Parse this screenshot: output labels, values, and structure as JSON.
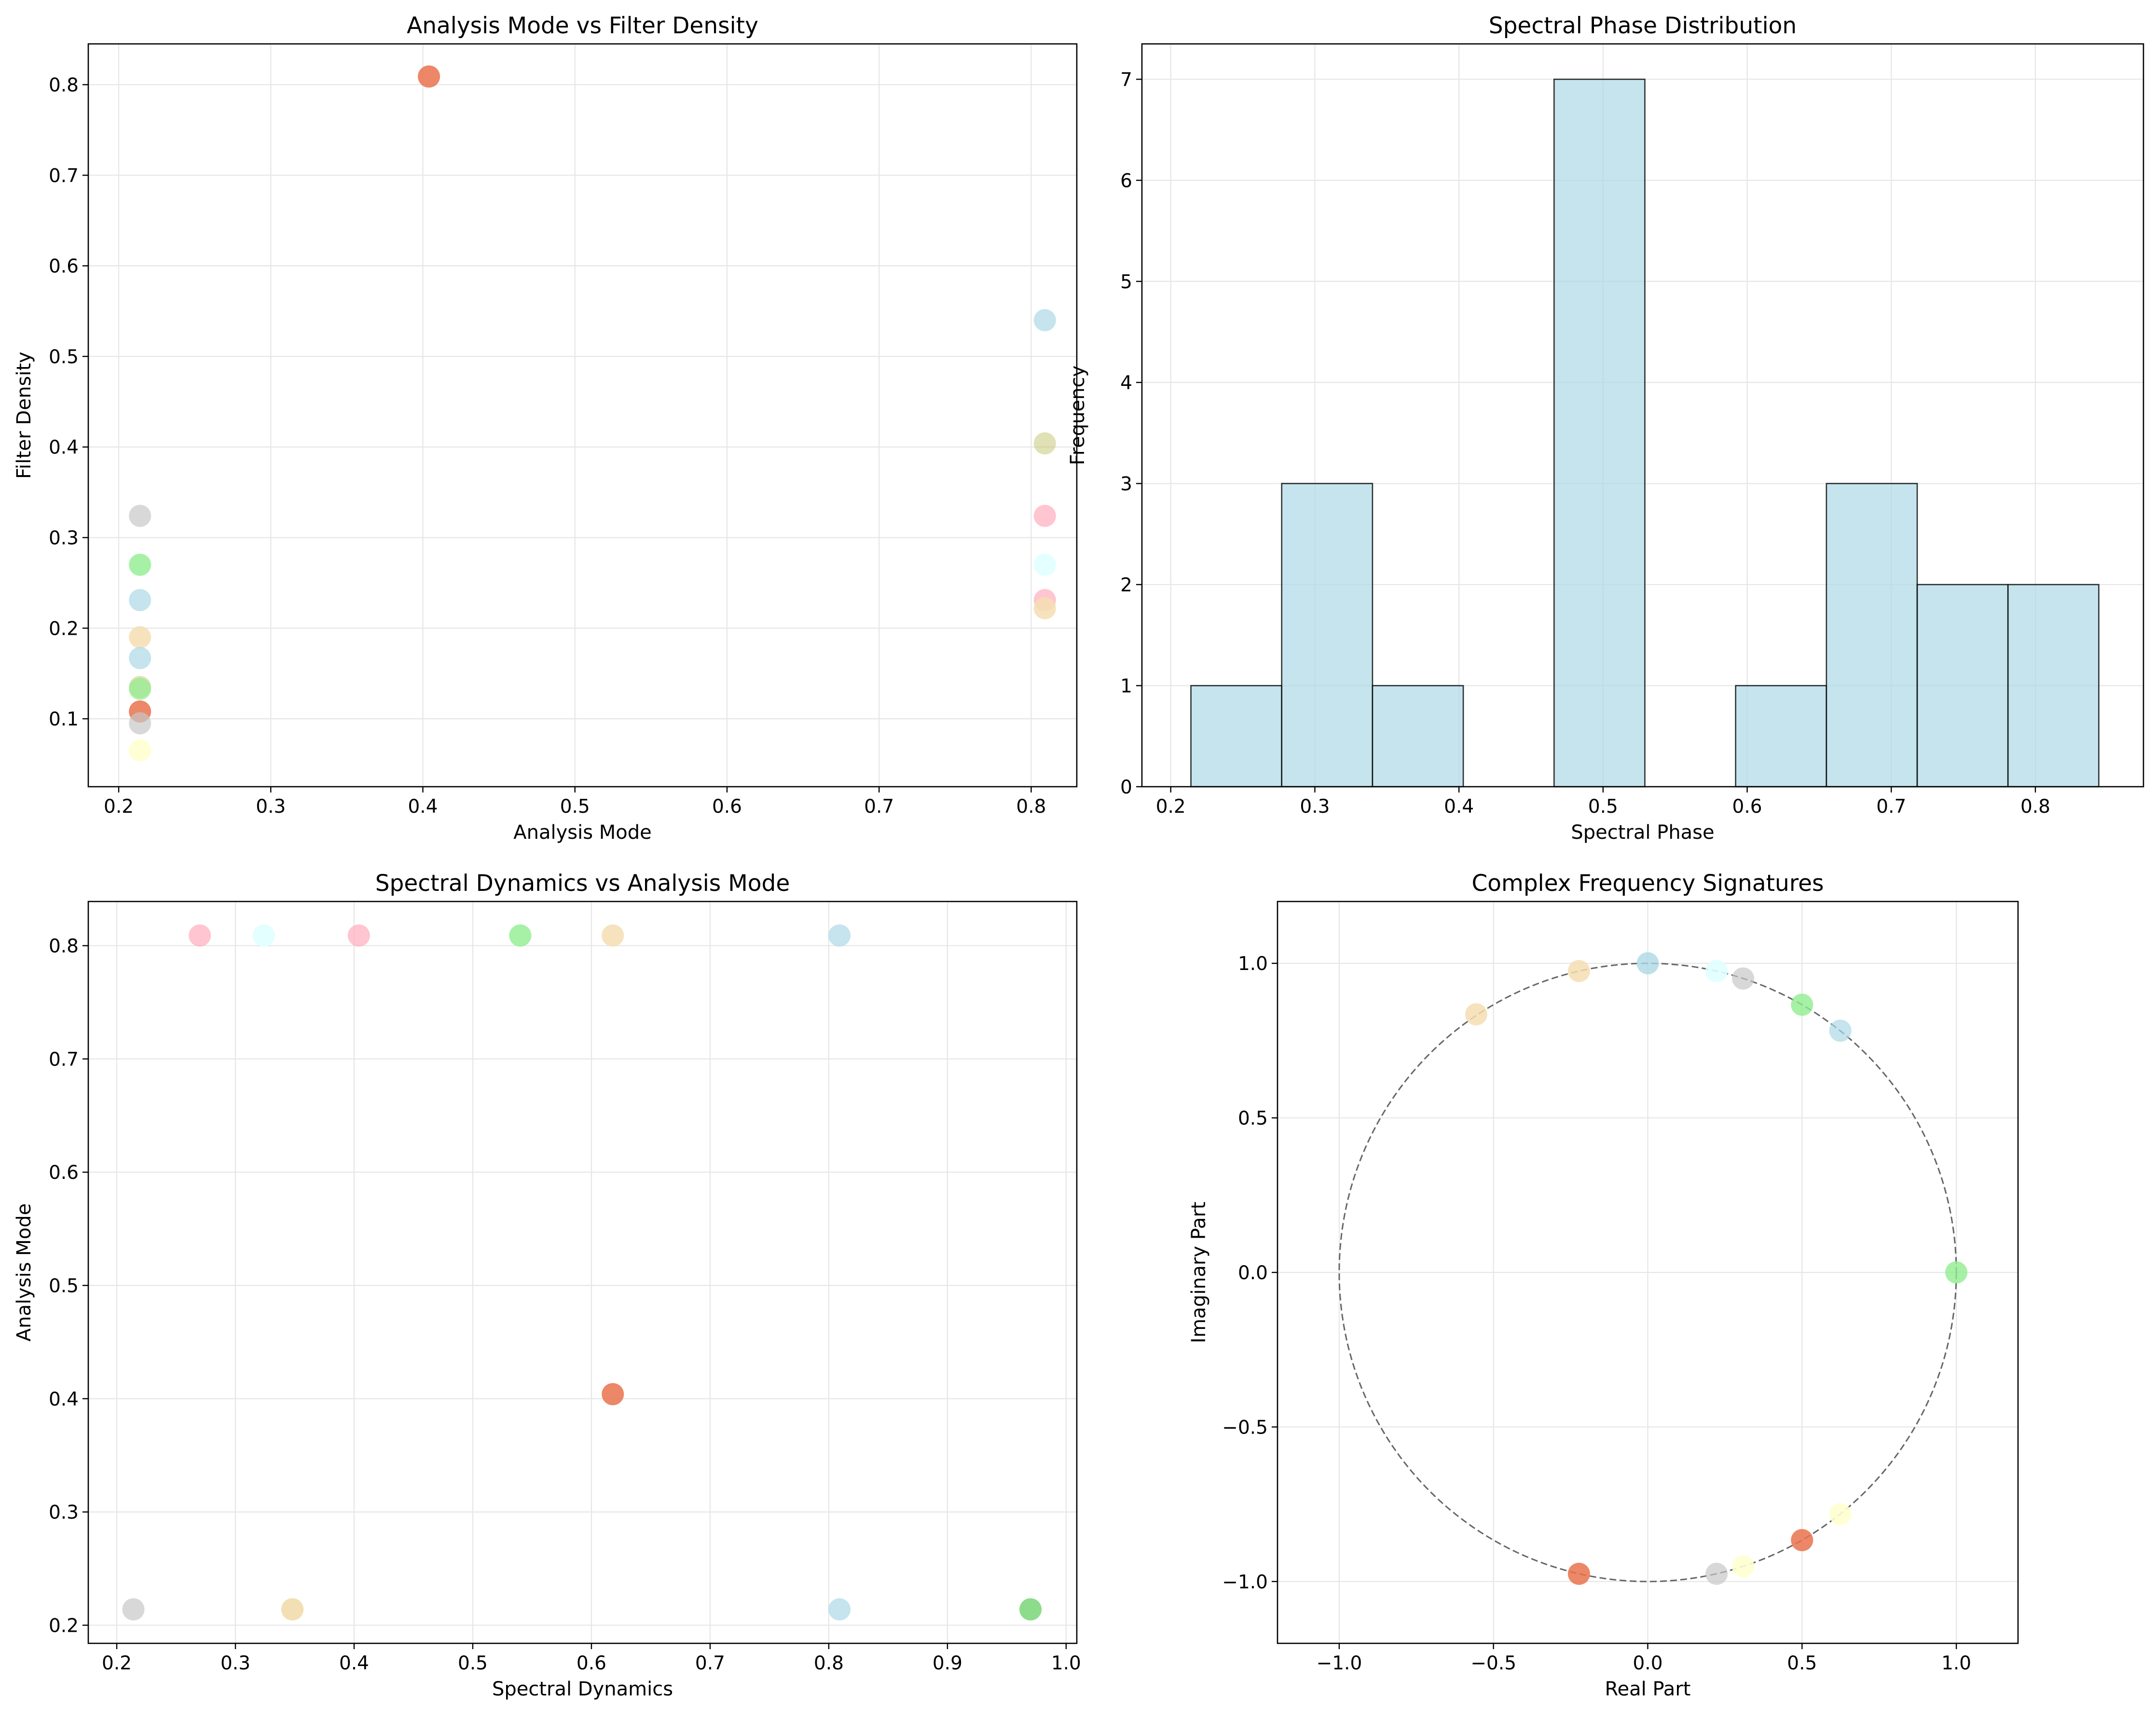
{
  "chart_data": [
    {
      "type": "scatter",
      "title": "Analysis Mode vs Filter Density",
      "xlabel": "Analysis Mode",
      "ylabel": "Filter Density",
      "xlim": [
        0.18,
        0.83
      ],
      "ylim": [
        0.025,
        0.845
      ],
      "xticks": [
        0.2,
        0.3,
        0.4,
        0.5,
        0.6,
        0.7,
        0.8
      ],
      "yticks": [
        0.1,
        0.2,
        0.3,
        0.4,
        0.5,
        0.6,
        0.7,
        0.8
      ],
      "grid": true,
      "points": [
        {
          "x": 0.404,
          "y": 0.809,
          "color": "#e9724c",
          "alpha": 0.85
        },
        {
          "x": 0.809,
          "y": 0.54,
          "color": "#add8e6",
          "alpha": 0.7
        },
        {
          "x": 0.809,
          "y": 0.404,
          "color": "#c8c87a",
          "alpha": 0.55
        },
        {
          "x": 0.809,
          "y": 0.324,
          "color": "#ffa6b8",
          "alpha": 0.65
        },
        {
          "x": 0.809,
          "y": 0.27,
          "color": "#e0ffff",
          "alpha": 0.9
        },
        {
          "x": 0.809,
          "y": 0.231,
          "color": "#ffa6b8",
          "alpha": 0.65
        },
        {
          "x": 0.809,
          "y": 0.222,
          "color": "#f5deb3",
          "alpha": 0.85
        },
        {
          "x": 0.214,
          "y": 0.324,
          "color": "#c8c8c8",
          "alpha": 0.7
        },
        {
          "x": 0.214,
          "y": 0.27,
          "color": "#90ee90",
          "alpha": 0.8
        },
        {
          "x": 0.214,
          "y": 0.231,
          "color": "#add8e6",
          "alpha": 0.7
        },
        {
          "x": 0.214,
          "y": 0.19,
          "color": "#f5deb3",
          "alpha": 0.85
        },
        {
          "x": 0.214,
          "y": 0.167,
          "color": "#add8e6",
          "alpha": 0.7
        },
        {
          "x": 0.214,
          "y": 0.135,
          "color": "#c8c87a",
          "alpha": 0.55
        },
        {
          "x": 0.214,
          "y": 0.133,
          "color": "#90ee90",
          "alpha": 0.7
        },
        {
          "x": 0.214,
          "y": 0.108,
          "color": "#e9724c",
          "alpha": 0.85
        },
        {
          "x": 0.214,
          "y": 0.095,
          "color": "#c8c8c8",
          "alpha": 0.7
        },
        {
          "x": 0.214,
          "y": 0.065,
          "color": "#ffffd0",
          "alpha": 0.9
        }
      ]
    },
    {
      "type": "bar",
      "title": "Spectral Phase Distribution",
      "xlabel": "Spectral Phase",
      "ylabel": "Frequency",
      "xlim": [
        0.18,
        0.875
      ],
      "ylim": [
        0,
        7.35
      ],
      "xticks": [
        0.2,
        0.3,
        0.4,
        0.5,
        0.6,
        0.7,
        0.8
      ],
      "yticks": [
        0,
        1,
        2,
        3,
        4,
        5,
        6,
        7
      ],
      "grid": true,
      "bin_edges": [
        0.214,
        0.277,
        0.34,
        0.403,
        0.466,
        0.529,
        0.592,
        0.655,
        0.718,
        0.781,
        0.844
      ],
      "values": [
        1,
        3,
        1,
        0,
        7,
        0,
        1,
        3,
        2,
        2
      ],
      "color": "#add8e6"
    },
    {
      "type": "scatter",
      "title": "Spectral Dynamics vs Analysis Mode",
      "xlabel": "Spectral Dynamics",
      "ylabel": "Analysis Mode",
      "xlim": [
        0.176,
        1.009
      ],
      "ylim": [
        0.184,
        0.839
      ],
      "xticks": [
        0.2,
        0.3,
        0.4,
        0.5,
        0.6,
        0.7,
        0.8,
        0.9,
        1.0
      ],
      "yticks": [
        0.2,
        0.3,
        0.4,
        0.5,
        0.6,
        0.7,
        0.8
      ],
      "grid": true,
      "points": [
        {
          "x": 0.27,
          "y": 0.809,
          "color": "#ffa6b8",
          "alpha": 0.65
        },
        {
          "x": 0.324,
          "y": 0.809,
          "color": "#e0ffff",
          "alpha": 0.9
        },
        {
          "x": 0.404,
          "y": 0.809,
          "color": "#ffa6b8",
          "alpha": 0.65
        },
        {
          "x": 0.54,
          "y": 0.809,
          "color": "#90ee90",
          "alpha": 0.8
        },
        {
          "x": 0.618,
          "y": 0.809,
          "color": "#f5deb3",
          "alpha": 0.85
        },
        {
          "x": 0.809,
          "y": 0.809,
          "color": "#add8e6",
          "alpha": 0.7
        },
        {
          "x": 0.618,
          "y": 0.404,
          "color": "#e9724c",
          "alpha": 0.85
        },
        {
          "x": 0.214,
          "y": 0.214,
          "color": "#c8c8c8",
          "alpha": 0.7
        },
        {
          "x": 0.348,
          "y": 0.214,
          "color": "#c8c87a",
          "alpha": 0.55
        },
        {
          "x": 0.348,
          "y": 0.214,
          "color": "#f5deb3",
          "alpha": 0.85
        },
        {
          "x": 0.809,
          "y": 0.214,
          "color": "#add8e6",
          "alpha": 0.7
        },
        {
          "x": 0.97,
          "y": 0.214,
          "color": "#90ee90",
          "alpha": 0.8
        },
        {
          "x": 0.97,
          "y": 0.214,
          "color": "#7ccf7c",
          "alpha": 0.6
        }
      ]
    },
    {
      "type": "scatter",
      "title": "Complex Frequency Signatures",
      "xlabel": "Real Part",
      "ylabel": "Imaginary Part",
      "xlim": [
        -1.2,
        1.2
      ],
      "ylim": [
        -1.2,
        1.2
      ],
      "xticks": [
        -1.0,
        -0.5,
        0.0,
        0.5,
        1.0
      ],
      "yticks": [
        -1.0,
        -0.5,
        0.0,
        0.5,
        1.0
      ],
      "grid": true,
      "unit_circle": true,
      "points": [
        {
          "x": 0.0,
          "y": 1.0,
          "color": "#add8e6",
          "alpha": 0.8
        },
        {
          "x": -0.223,
          "y": 0.975,
          "color": "#f5deb3",
          "alpha": 0.85
        },
        {
          "x": -0.556,
          "y": 0.835,
          "color": "#f5deb3",
          "alpha": 0.85
        },
        {
          "x": 0.223,
          "y": 0.975,
          "color": "#e0ffff",
          "alpha": 0.9
        },
        {
          "x": 0.309,
          "y": 0.951,
          "color": "#c8c8c8",
          "alpha": 0.7
        },
        {
          "x": 0.5,
          "y": 0.866,
          "color": "#90ee90",
          "alpha": 0.8
        },
        {
          "x": 0.624,
          "y": 0.782,
          "color": "#add8e6",
          "alpha": 0.7
        },
        {
          "x": 1.0,
          "y": 0.0,
          "color": "#90ee90",
          "alpha": 0.8
        },
        {
          "x": 0.624,
          "y": -0.782,
          "color": "#ffffd0",
          "alpha": 0.9
        },
        {
          "x": 0.5,
          "y": -0.866,
          "color": "#e9724c",
          "alpha": 0.85
        },
        {
          "x": 0.309,
          "y": -0.951,
          "color": "#ffffd0",
          "alpha": 0.9
        },
        {
          "x": 0.223,
          "y": -0.975,
          "color": "#c8c8c8",
          "alpha": 0.7
        },
        {
          "x": -0.223,
          "y": -0.975,
          "color": "#e9724c",
          "alpha": 0.85
        }
      ]
    }
  ]
}
